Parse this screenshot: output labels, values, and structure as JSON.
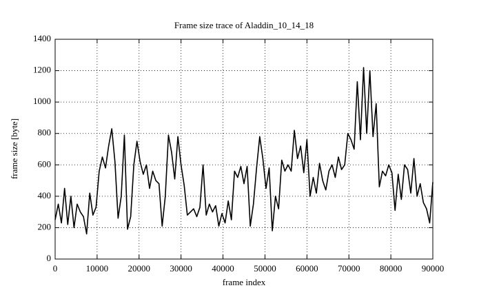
{
  "chart_data": {
    "type": "line",
    "title": "Frame size trace of Aladdin_10_14_18",
    "x_label": "frame index",
    "y_label": "frame size [byte]",
    "x": [
      0,
      750,
      1500,
      2250,
      3000,
      3750,
      4500,
      5250,
      6000,
      6750,
      7500,
      8250,
      9000,
      9750,
      10500,
      11250,
      12000,
      12750,
      13500,
      14250,
      15000,
      15750,
      16500,
      17250,
      18000,
      18750,
      19500,
      20250,
      21000,
      21750,
      22500,
      23250,
      24000,
      24750,
      25500,
      26250,
      27000,
      27750,
      28500,
      29250,
      30000,
      30750,
      31500,
      32250,
      33000,
      33750,
      34500,
      35250,
      36000,
      36750,
      37500,
      38250,
      39000,
      39750,
      40500,
      41250,
      42000,
      42750,
      43500,
      44250,
      45000,
      45750,
      46500,
      47250,
      48000,
      48750,
      49500,
      50250,
      51000,
      51750,
      52500,
      53250,
      54000,
      54750,
      55500,
      56250,
      57000,
      57750,
      58500,
      59250,
      60000,
      60750,
      61500,
      62250,
      63000,
      63750,
      64500,
      65250,
      66000,
      66750,
      67500,
      68250,
      69000,
      69750,
      70500,
      71250,
      72000,
      72750,
      73500,
      74250,
      75000,
      75750,
      76500,
      77250,
      78000,
      78750,
      79500,
      80250,
      81000,
      81750,
      82500,
      83250,
      84000,
      84750,
      85500,
      86250,
      87000,
      87750,
      88500,
      89250,
      90000
    ],
    "values": [
      250,
      350,
      230,
      450,
      220,
      400,
      200,
      350,
      300,
      270,
      160,
      420,
      280,
      330,
      560,
      650,
      580,
      720,
      830,
      620,
      260,
      400,
      790,
      190,
      270,
      600,
      750,
      620,
      540,
      600,
      450,
      560,
      500,
      480,
      210,
      400,
      790,
      680,
      510,
      780,
      600,
      470,
      280,
      300,
      320,
      270,
      330,
      600,
      280,
      350,
      300,
      340,
      210,
      290,
      230,
      370,
      250,
      560,
      520,
      590,
      480,
      590,
      210,
      350,
      580,
      780,
      640,
      450,
      580,
      180,
      400,
      320,
      630,
      560,
      600,
      560,
      820,
      640,
      720,
      550,
      760,
      400,
      520,
      420,
      610,
      500,
      440,
      560,
      600,
      520,
      650,
      570,
      600,
      800,
      760,
      700,
      1130,
      760,
      1220,
      800,
      1200,
      780,
      990,
      460,
      560,
      530,
      600,
      550,
      310,
      540,
      380,
      600,
      570,
      420,
      640,
      400,
      480,
      360,
      320,
      230,
      490
    ],
    "color": "#000000",
    "xlim": [
      0,
      90000
    ],
    "xticks": [
      0,
      10000,
      20000,
      30000,
      40000,
      50000,
      60000,
      70000,
      80000,
      90000
    ],
    "ylim": [
      0,
      1400
    ],
    "yticks": [
      0,
      200,
      400,
      600,
      800,
      1000,
      1200,
      1400
    ],
    "grid": true
  }
}
